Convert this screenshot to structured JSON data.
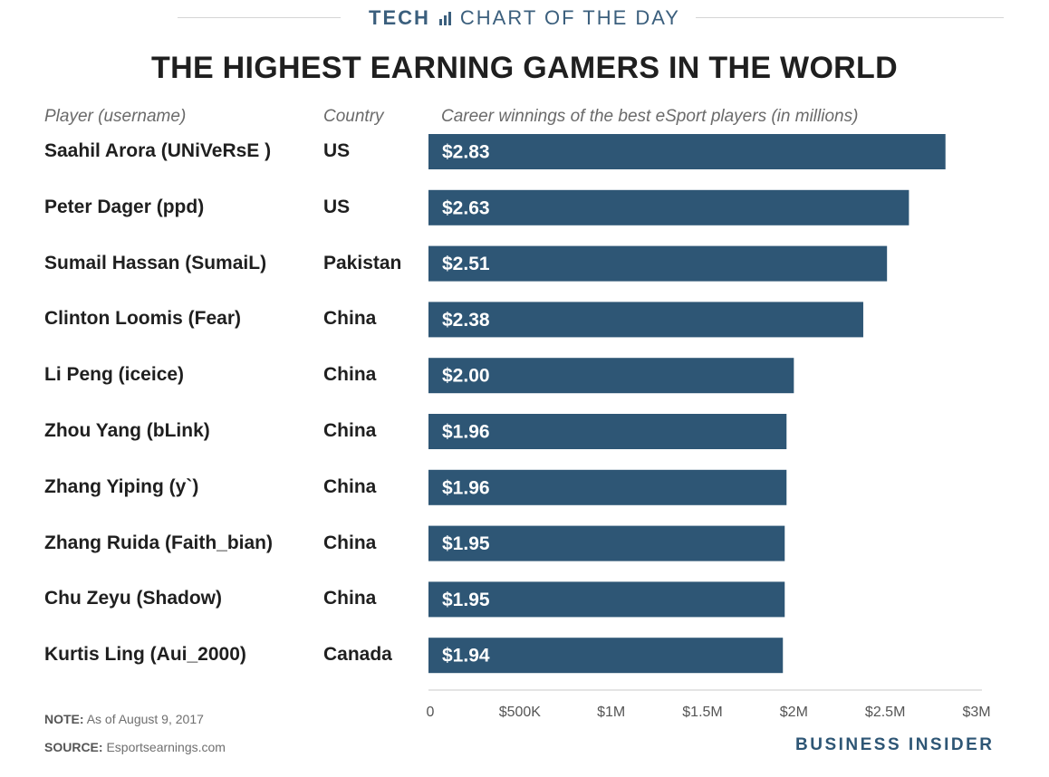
{
  "header": {
    "kicker_left": "TECH",
    "kicker_right": "CHART OF THE DAY",
    "title": "THE HIGHEST EARNING GAMERS IN THE WORLD",
    "accent_color": "#3b5f7d"
  },
  "columns": {
    "player": "Player (username)",
    "country": "Country",
    "winnings": "Career winnings of the best eSport players (in millions)"
  },
  "footer": {
    "note_label": "NOTE:",
    "note_text": "As of August 9, 2017",
    "source_label": "SOURCE:",
    "source_text": "Esportsearnings.com",
    "brand": "BUSINESS INSIDER"
  },
  "chart_data": {
    "type": "bar",
    "orientation": "horizontal",
    "bar_color": "#2e5675",
    "categories": [
      "Saahil Arora (UNiVeRsE )",
      "Peter Dager (ppd)",
      "Sumail Hassan (SumaiL)",
      "Clinton Loomis (Fear)",
      "Li Peng (iceice)",
      "Zhou Yang (bLink)",
      "Zhang Yiping (y`)",
      "Zhang Ruida (Faith_bian)",
      "Chu Zeyu (Shadow)",
      "Kurtis Ling (Aui_2000)"
    ],
    "countries": [
      "US",
      "US",
      "Pakistan",
      "China",
      "China",
      "China",
      "China",
      "China",
      "China",
      "Canada"
    ],
    "values": [
      2.83,
      2.63,
      2.51,
      2.38,
      2.0,
      1.96,
      1.96,
      1.95,
      1.95,
      1.94
    ],
    "data_labels": [
      "$2.83",
      "$2.63",
      "$2.51",
      "$2.38",
      "$2.00",
      "$1.96",
      "$1.96",
      "$1.95",
      "$1.95",
      "$1.94"
    ],
    "xlim": [
      0,
      3
    ],
    "xticks": [
      0,
      0.5,
      1,
      1.5,
      2,
      2.5,
      3
    ],
    "xtick_labels": [
      "0",
      "$500K",
      "$1M",
      "$1.5M",
      "$2M",
      "$2.5M",
      "$3M"
    ],
    "grid": false
  }
}
